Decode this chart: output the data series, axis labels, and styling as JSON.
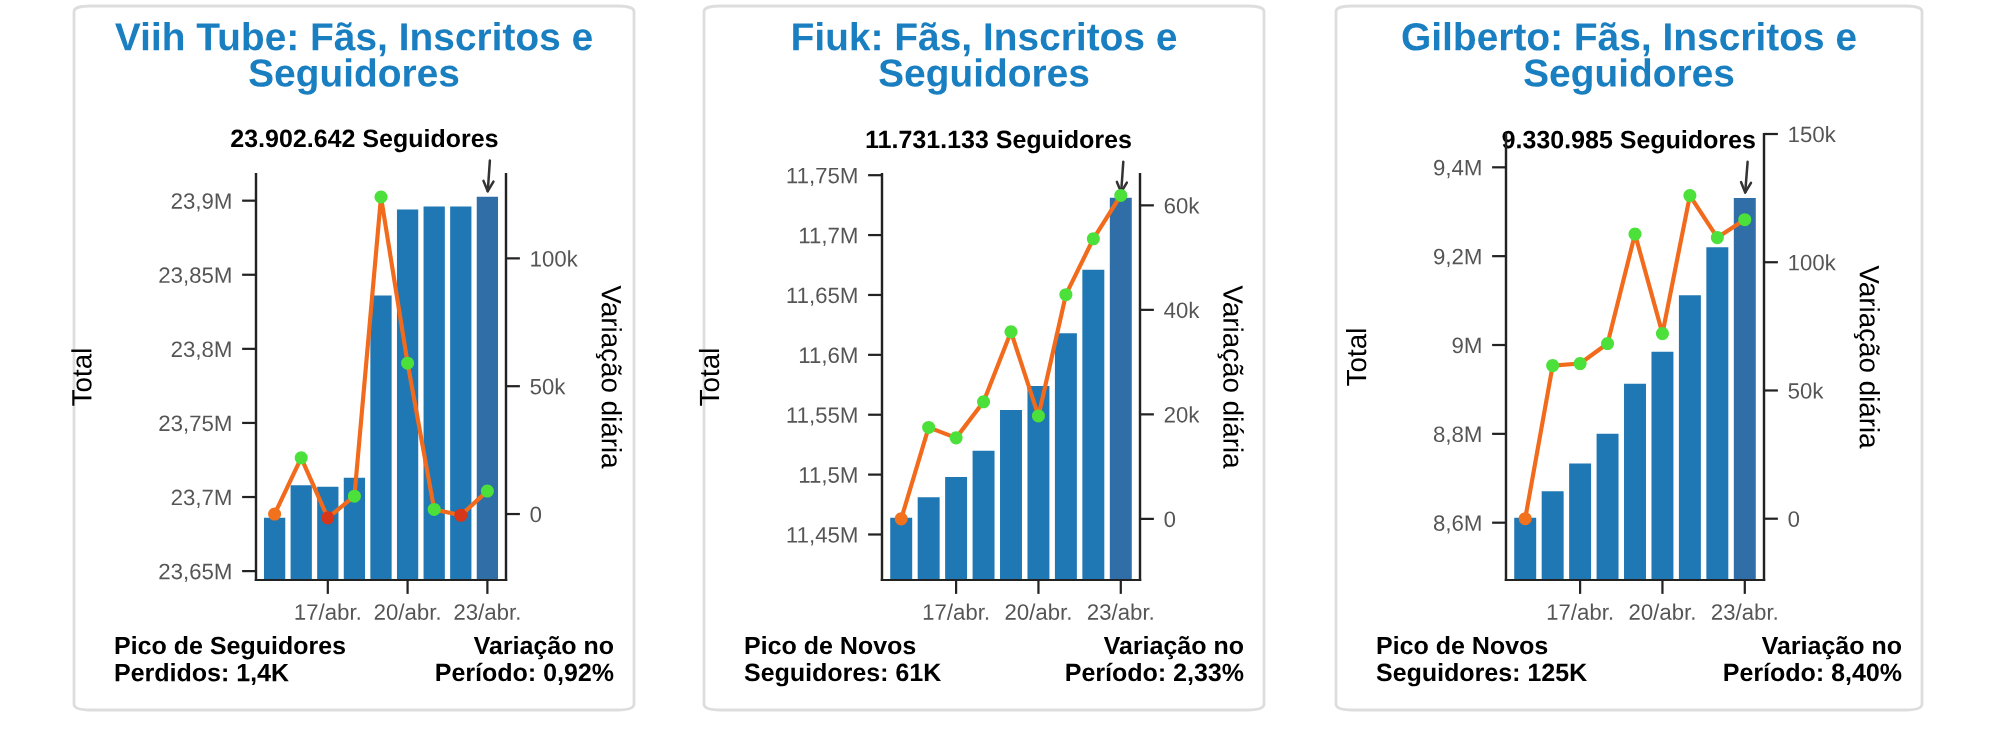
{
  "chart_data": [
    {
      "type": "bar",
      "title": "Viih Tube: Fãs, Inscritos e\nSeguidores",
      "ylabel": "Total",
      "y2label": "Variação diária",
      "marker": "circle",
      "categories": [
        null,
        null,
        "17/abr.",
        null,
        null,
        "20/abr.",
        null,
        null,
        "23/abr."
      ],
      "series": [
        {
          "type": "bar",
          "values": [
            23.686,
            23.708,
            23.707,
            23.713,
            23.836,
            23.894,
            23.896,
            23.896,
            23.902642
          ],
          "colors": [
            "#1f77b4",
            "#1f77b4",
            "#1f77b4",
            "#1f77b4",
            "#1f77b4",
            "#1f77b4",
            "#1f77b4",
            "#1f77b4",
            "#2f6ea6"
          ]
        },
        {
          "type": "line",
          "axis": "y2",
          "color": "#f26b1d",
          "values": [
            0,
            22,
            -1.5,
            7,
            124,
            59,
            1.8,
            -0.5,
            9
          ],
          "colors": [
            "#f2711d",
            "#4be03a",
            "#d6361a",
            "#4be03a",
            "#4be03a",
            "#4be03a",
            "#4be03a",
            "#d6361a",
            "#4be03a"
          ]
        }
      ],
      "ylim": [
        23.644,
        23.918
      ],
      "yticks": [
        {
          "value": 23.65,
          "label": "23,65M"
        },
        {
          "value": 23.7,
          "label": "23,7M"
        },
        {
          "value": 23.75,
          "label": "23,75M"
        },
        {
          "value": 23.8,
          "label": "23,8M"
        },
        {
          "value": 23.85,
          "label": "23,85M"
        },
        {
          "value": 23.9,
          "label": "23,9M"
        }
      ],
      "y2lim": [
        -25.8,
        133
      ],
      "y2ticks": [
        0,
        {
          "value": 50,
          "label": "50k"
        },
        {
          "value": 100,
          "label": "100k"
        }
      ],
      "annotations": [
        {
          "text": "23.902.642 Seguidores",
          "x": "23/abr.",
          "y": 23.902642
        },
        "Pico de Seguidores\nPerdidos: 1,4K",
        "Variação no\nPeríodo: 0,92%"
      ]
    },
    {
      "type": "bar",
      "title": "Fiuk: Fãs, Inscritos e\nSeguidores",
      "ylabel": "Total",
      "y2label": "Variação diária",
      "marker": "circle",
      "categories": [
        null,
        null,
        "17/abr.",
        null,
        null,
        "20/abr.",
        null,
        null,
        "23/abr."
      ],
      "series": [
        {
          "type": "bar",
          "values": [
            11.464,
            11.481,
            11.498,
            11.52,
            11.554,
            11.574,
            11.618,
            11.671,
            11.731133
          ],
          "colors": [
            "#1f77b4",
            "#1f77b4",
            "#1f77b4",
            "#1f77b4",
            "#1f77b4",
            "#1f77b4",
            "#1f77b4",
            "#1f77b4",
            "#2f6ea6"
          ]
        },
        {
          "type": "line",
          "axis": "y2",
          "color": "#f26b1d",
          "values": [
            0,
            17.5,
            15.5,
            22.4,
            35.8,
            19.7,
            42.9,
            53.6,
            61.9
          ],
          "colors": [
            "#f2711d",
            "#4be03a",
            "#4be03a",
            "#4be03a",
            "#4be03a",
            "#4be03a",
            "#4be03a",
            "#4be03a",
            "#4be03a"
          ]
        }
      ],
      "ylim": [
        11.412,
        11.751
      ],
      "yticks": [
        {
          "value": 11.45,
          "label": "11,45M"
        },
        {
          "value": 11.5,
          "label": "11,5M"
        },
        {
          "value": 11.55,
          "label": "11,55M"
        },
        {
          "value": 11.6,
          "label": "11,6M"
        },
        {
          "value": 11.65,
          "label": "11,65M"
        },
        {
          "value": 11.7,
          "label": "11,7M"
        },
        {
          "value": 11.75,
          "label": "11,75M"
        }
      ],
      "y2lim": [
        -11.7,
        66
      ],
      "y2ticks": [
        0,
        {
          "value": 20,
          "label": "20k"
        },
        {
          "value": 40,
          "label": "40k"
        },
        {
          "value": 60,
          "label": "60k"
        }
      ],
      "annotations": [
        {
          "text": "11.731.133 Seguidores",
          "x": "23/abr.",
          "y": 11.731133
        },
        "Pico de Novos\nSeguidores: 61K",
        "Variação no\nPeríodo: 2,33%"
      ]
    },
    {
      "type": "bar",
      "title": "Gilberto: Fãs, Inscritos e\nSeguidores",
      "ylabel": "Total",
      "y2label": "Variação diária",
      "marker": "circle",
      "categories": [
        null,
        null,
        "17/abr.",
        null,
        null,
        "20/abr.",
        null,
        null,
        "23/abr."
      ],
      "series": [
        {
          "type": "bar",
          "values": [
            8.611,
            8.671,
            8.733,
            8.8,
            8.913,
            8.985,
            9.112,
            9.22,
            9.330985
          ],
          "colors": [
            "#1f77b4",
            "#1f77b4",
            "#1f77b4",
            "#1f77b4",
            "#1f77b4",
            "#1f77b4",
            "#1f77b4",
            "#1f77b4",
            "#2f6ea6"
          ]
        },
        {
          "type": "line",
          "axis": "y2",
          "color": "#f26b1d",
          "values": [
            0,
            59.7,
            60.5,
            68.3,
            111,
            72.2,
            126,
            109.6,
            116.6
          ],
          "colors": [
            "#f2711d",
            "#4be03a",
            "#4be03a",
            "#4be03a",
            "#4be03a",
            "#4be03a",
            "#4be03a",
            "#4be03a",
            "#4be03a"
          ]
        }
      ],
      "ylim": [
        8.471,
        9.475
      ],
      "yticks": [
        {
          "value": 8.6,
          "label": "8,6M"
        },
        {
          "value": 8.8,
          "label": "8,8M"
        },
        {
          "value": 9.0,
          "label": "9M"
        },
        {
          "value": 9.2,
          "label": "9,2M"
        },
        {
          "value": 9.4,
          "label": "9,4M"
        }
      ],
      "y2lim": [
        -23.9,
        150
      ],
      "y2ticks": [
        0,
        {
          "value": 50,
          "label": "50k"
        },
        {
          "value": 100,
          "label": "100k"
        },
        {
          "value": 150,
          "label": "150k"
        }
      ],
      "annotations": [
        {
          "text": "9.330.985 Seguidores",
          "x": "23/abr.",
          "y": 9.330985
        },
        "Pico de Novos\nSeguidores: 125K",
        "Variação no\nPeríodo: 8,40%"
      ]
    }
  ]
}
